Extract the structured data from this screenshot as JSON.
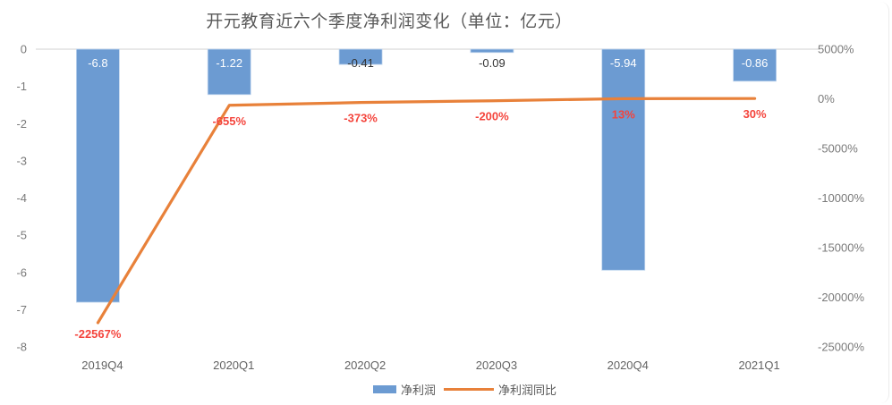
{
  "title": "开元教育近六个季度净利润变化（单位：亿元）",
  "legend": {
    "bar_label": "净利润",
    "line_label": "净利润同比"
  },
  "style": {
    "bar_color": "#6C9BD2",
    "bar_border_color": "#BFD5EE",
    "line_color": "#E8813A",
    "line_label_color": "#F4443C",
    "grid_color": "#D9D9D9",
    "axis_text_color": "#7A7A7A",
    "x_label_color": "#636363",
    "title_color": "#595959",
    "bar_label_light": "#FFFFFF",
    "bar_label_dark": "#333333"
  },
  "chart_data": {
    "type": "combo: bar + line",
    "title": "开元教育近六个季度净利润变化（单位：亿元）",
    "categories": [
      "2019Q4",
      "2020Q1",
      "2020Q2",
      "2020Q3",
      "2020Q4",
      "2021Q1"
    ],
    "series": [
      {
        "name": "净利润",
        "type": "bar",
        "axis": "left",
        "unit": "亿元",
        "values": [
          -6.8,
          -1.22,
          -0.41,
          -0.09,
          -5.94,
          -0.86
        ],
        "data_labels": [
          "-6.8",
          "-1.22",
          "-0.41",
          "-0.09",
          "-5.94",
          "-0.86"
        ],
        "label_placement": [
          "inside-white",
          "inside-white",
          "below-dark",
          "below-dark",
          "inside-white",
          "inside-white"
        ]
      },
      {
        "name": "净利润同比",
        "type": "line",
        "axis": "right",
        "values": [
          -22567,
          -655,
          -373,
          -200,
          13,
          30
        ],
        "data_labels": [
          "-22567%",
          "-655%",
          "-373%",
          "-200%",
          "13%",
          "30%"
        ]
      }
    ],
    "left_axis": {
      "max": 0,
      "min": -8,
      "step": 1,
      "ticks": [
        "0",
        "-1",
        "-2",
        "-3",
        "-4",
        "-5",
        "-6",
        "-7",
        "-8"
      ]
    },
    "right_axis": {
      "max": 5000,
      "min": -25000,
      "step": 5000,
      "ticks": [
        "5000%",
        "0%",
        "-5000%",
        "-10000%",
        "-15000%",
        "-20000%",
        "-25000%"
      ]
    },
    "grid": "single horizontal line at left-axis 0 / right-axis 5000%",
    "legend_position": "bottom-center"
  }
}
